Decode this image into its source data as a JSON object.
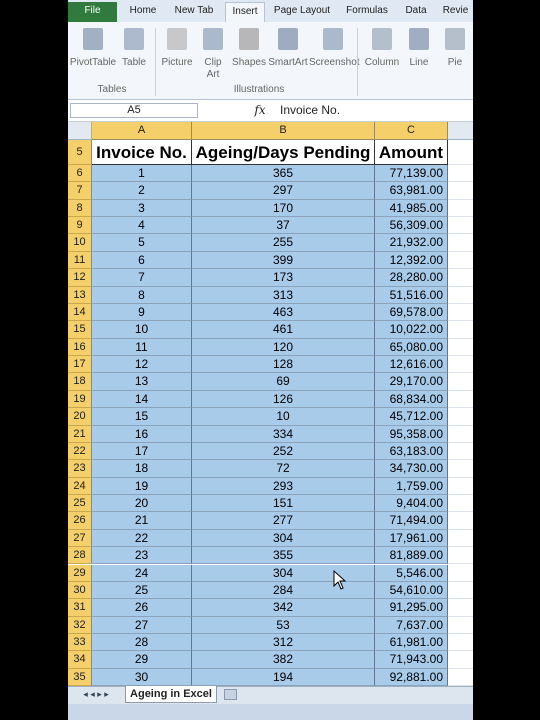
{
  "ribbon": {
    "tabs": [
      "File",
      "Home",
      "New Tab",
      "Insert",
      "Page Layout",
      "Formulas",
      "Data",
      "Revie"
    ],
    "groups": [
      {
        "label": "Tables",
        "buttons": [
          "PivotTable",
          "Table"
        ]
      },
      {
        "label": "Illustrations",
        "buttons": [
          "Picture",
          "Clip Art",
          "Shapes",
          "SmartArt",
          "Screenshot"
        ]
      },
      {
        "buttons": [
          "Column",
          "Line",
          "Pie"
        ]
      }
    ]
  },
  "formula_bar": {
    "name_box": "A5",
    "fx": "fx",
    "content": "Invoice No."
  },
  "sheet": {
    "columns": [
      "A",
      "B",
      "C"
    ],
    "row_numbers": [
      5,
      6,
      7,
      8,
      9,
      10,
      11,
      12,
      13,
      14,
      15,
      16,
      17,
      18,
      19,
      20,
      21,
      22,
      23,
      24,
      25,
      26,
      27,
      28,
      29,
      30,
      31,
      32,
      33,
      34,
      35
    ],
    "header": [
      "Invoice No.",
      "Ageing/Days Pending",
      "Amount"
    ],
    "rows": [
      [
        1,
        365,
        "77,139.00"
      ],
      [
        2,
        297,
        "63,981.00"
      ],
      [
        3,
        170,
        "41,985.00"
      ],
      [
        4,
        37,
        "56,309.00"
      ],
      [
        5,
        255,
        "21,932.00"
      ],
      [
        6,
        399,
        "12,392.00"
      ],
      [
        7,
        173,
        "28,280.00"
      ],
      [
        8,
        313,
        "51,516.00"
      ],
      [
        9,
        463,
        "69,578.00"
      ],
      [
        10,
        461,
        "10,022.00"
      ],
      [
        11,
        120,
        "65,080.00"
      ],
      [
        12,
        128,
        "12,616.00"
      ],
      [
        13,
        69,
        "29,170.00"
      ],
      [
        14,
        126,
        "68,834.00"
      ],
      [
        15,
        10,
        "45,712.00"
      ],
      [
        16,
        334,
        "95,358.00"
      ],
      [
        17,
        252,
        "63,183.00"
      ],
      [
        18,
        72,
        "34,730.00"
      ],
      [
        19,
        293,
        "1,759.00"
      ],
      [
        20,
        151,
        "9,404.00"
      ],
      [
        21,
        277,
        "71,494.00"
      ],
      [
        22,
        304,
        "17,961.00"
      ],
      [
        23,
        355,
        "81,889.00"
      ],
      [
        24,
        304,
        "5,546.00"
      ],
      [
        25,
        284,
        "54,610.00"
      ],
      [
        26,
        342,
        "91,295.00"
      ],
      [
        27,
        53,
        "7,637.00"
      ],
      [
        28,
        312,
        "61,981.00"
      ],
      [
        29,
        382,
        "71,943.00"
      ],
      [
        30,
        194,
        "92,881.00"
      ]
    ]
  },
  "sheet_tabs": [
    "Ageing in Excel"
  ]
}
